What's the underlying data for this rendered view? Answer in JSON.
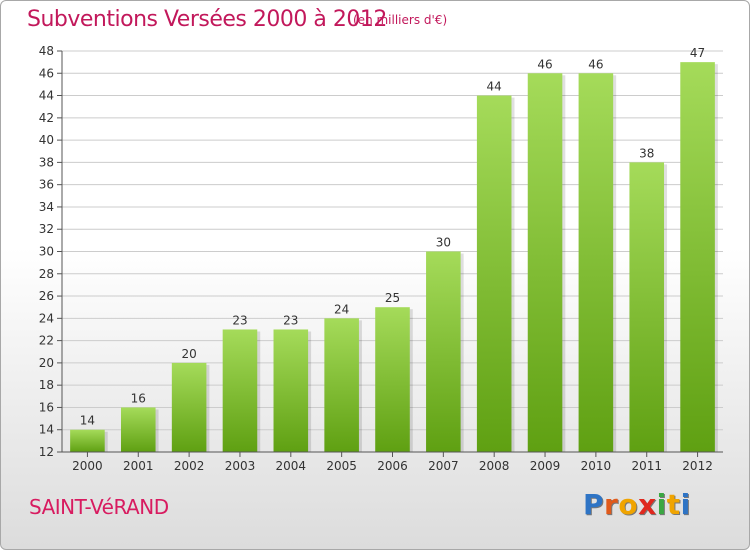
{
  "header": {
    "title": "Subventions Versées 2000 à 2012",
    "subtitle": "(en milliers d'€)"
  },
  "footer": {
    "place": "SAINT-VéRAND",
    "brand_letters": [
      "P",
      "r",
      "o",
      "x",
      "i",
      "t",
      "i"
    ],
    "brand_colors": [
      "#2e74c5",
      "#e05a1b",
      "#f0a400",
      "#e0281e",
      "#3aa742",
      "#f0a400",
      "#2e74c5"
    ]
  },
  "colors": {
    "bar_light": "#a5db5a",
    "bar_dark": "#5fa012",
    "axis": "#555555",
    "grid": "#cccccc"
  },
  "chart_data": {
    "type": "bar",
    "categories": [
      "2000",
      "2001",
      "2002",
      "2003",
      "2004",
      "2005",
      "2006",
      "2007",
      "2008",
      "2009",
      "2010",
      "2011",
      "2012"
    ],
    "values": [
      14,
      16,
      20,
      23,
      23,
      24,
      25,
      30,
      44,
      46,
      46,
      38,
      47
    ],
    "ylim": [
      12,
      48
    ],
    "yticks": [
      12,
      14,
      16,
      18,
      20,
      22,
      24,
      26,
      28,
      30,
      32,
      34,
      36,
      38,
      40,
      42,
      44,
      46,
      48
    ],
    "grid": true,
    "data_labels": true
  }
}
